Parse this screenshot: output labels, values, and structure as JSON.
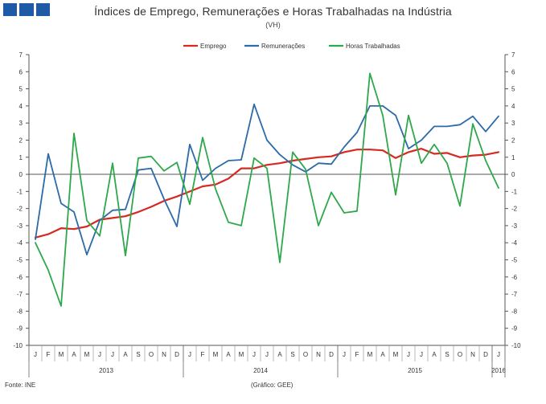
{
  "header": {
    "title": "Índices de Emprego, Remunerações e Horas Trabalhadas na Indústria",
    "subtitle": "(VH)"
  },
  "footer": {
    "source": "Fonte: INE",
    "credit": "(Gráfico: GEE)"
  },
  "colors": {
    "emprego": "#d62a20",
    "remuneracoes": "#2c6aa8",
    "horas": "#2ea84a",
    "logo": "#1f5aa6"
  },
  "chart_data": {
    "type": "line",
    "title": "Índices de Emprego, Remunerações e Horas Trabalhadas na Indústria",
    "subtitle": "(VH)",
    "xlabel": "",
    "ylabel": "",
    "ylim": [
      -10,
      7
    ],
    "yticks": [
      7,
      6,
      5,
      4,
      3,
      2,
      1,
      0,
      -1,
      -2,
      -3,
      -4,
      -5,
      -6,
      -7,
      -8,
      -9,
      -10
    ],
    "grid": false,
    "legend_position": "top-center",
    "months": [
      "J",
      "F",
      "M",
      "A",
      "M",
      "J",
      "J",
      "A",
      "S",
      "O",
      "N",
      "D",
      "J",
      "F",
      "M",
      "A",
      "M",
      "J",
      "J",
      "A",
      "S",
      "O",
      "N",
      "D",
      "J",
      "F",
      "M",
      "A",
      "M",
      "J",
      "J",
      "A",
      "S",
      "O",
      "N",
      "D",
      "J"
    ],
    "years": [
      {
        "label": "2013",
        "start": 0,
        "end": 11
      },
      {
        "label": "2014",
        "start": 12,
        "end": 23
      },
      {
        "label": "2015",
        "start": 24,
        "end": 35
      },
      {
        "label": "2016",
        "start": 36,
        "end": 36
      }
    ],
    "series": [
      {
        "name": "Emprego",
        "color": "#d62a20",
        "values": [
          -3.7,
          -3.5,
          -3.15,
          -3.2,
          -3.05,
          -2.65,
          -2.55,
          -2.45,
          -2.2,
          -1.9,
          -1.55,
          -1.3,
          -1.0,
          -0.7,
          -0.6,
          -0.25,
          0.35,
          0.35,
          0.55,
          0.65,
          0.8,
          0.9,
          1.0,
          1.05,
          1.3,
          1.45,
          1.45,
          1.4,
          0.95,
          1.3,
          1.5,
          1.2,
          1.25,
          1.0,
          1.1,
          1.15,
          1.3
        ]
      },
      {
        "name": "Remunerações",
        "color": "#2c6aa8",
        "values": [
          -3.8,
          1.2,
          -1.7,
          -2.2,
          -4.7,
          -2.7,
          -2.1,
          -2.05,
          0.25,
          0.35,
          -1.45,
          -3.05,
          1.75,
          -0.35,
          0.35,
          0.8,
          0.85,
          4.1,
          2.0,
          1.15,
          0.55,
          0.15,
          0.65,
          0.6,
          1.6,
          2.45,
          4.0,
          4.0,
          3.45,
          1.5,
          2.0,
          2.8,
          2.8,
          2.9,
          3.4,
          2.5,
          3.4
        ]
      },
      {
        "name": "Horas Trabalhadas",
        "color": "#2ea84a",
        "values": [
          -4.0,
          -5.6,
          -7.7,
          2.4,
          -2.7,
          -3.6,
          0.65,
          -4.75,
          0.95,
          1.05,
          0.2,
          0.7,
          -1.75,
          2.15,
          -0.85,
          -2.8,
          -3.0,
          0.95,
          0.35,
          -5.15,
          1.3,
          0.3,
          -3.0,
          -1.05,
          -2.25,
          -2.15,
          5.9,
          3.45,
          -1.2,
          3.45,
          0.65,
          1.75,
          0.65,
          -1.85,
          2.95,
          0.8,
          -0.8
        ]
      }
    ]
  }
}
